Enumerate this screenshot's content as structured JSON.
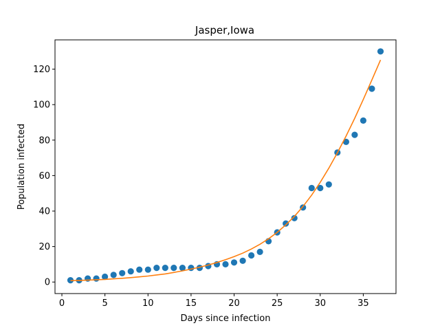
{
  "chart_data": {
    "type": "scatter",
    "title": "Jasper,Iowa",
    "xlabel": "Days since infection",
    "ylabel": "Population infected",
    "xlim": [
      -0.8,
      38.8
    ],
    "ylim": [
      -6.5,
      136.5
    ],
    "xticks": [
      0,
      5,
      10,
      15,
      20,
      25,
      30,
      35
    ],
    "yticks": [
      0,
      20,
      40,
      60,
      80,
      100,
      120
    ],
    "grid": false,
    "series": [
      {
        "kind": "scatter",
        "color": "#1f77b4",
        "x": [
          1,
          2,
          3,
          4,
          5,
          6,
          7,
          8,
          9,
          10,
          11,
          12,
          13,
          14,
          15,
          16,
          17,
          18,
          19,
          20,
          21,
          22,
          23,
          24,
          25,
          26,
          27,
          28,
          29,
          30,
          31,
          32,
          33,
          34,
          35,
          36,
          37
        ],
        "y": [
          1,
          1,
          2,
          2,
          3,
          4,
          5,
          6,
          7,
          7,
          8,
          8,
          8,
          8,
          8,
          8,
          9,
          10,
          10,
          11,
          12,
          15,
          17,
          23,
          28,
          33,
          36,
          42,
          53,
          53,
          55,
          73,
          79,
          83,
          91,
          109,
          130
        ]
      },
      {
        "kind": "line",
        "color": "#ff7f0e",
        "x": [
          1,
          2,
          3,
          4,
          5,
          6,
          7,
          8,
          9,
          10,
          11,
          12,
          13,
          14,
          15,
          16,
          17,
          18,
          19,
          20,
          21,
          22,
          23,
          24,
          25,
          26,
          27,
          28,
          29,
          30,
          31,
          32,
          33,
          34,
          35,
          36,
          37
        ],
        "y": [
          0.8,
          0.9,
          1.1,
          1.3,
          1.5,
          1.8,
          2.1,
          2.5,
          2.9,
          3.4,
          4.0,
          4.6,
          5.4,
          6.3,
          7.3,
          8.4,
          9.6,
          11.0,
          12.6,
          14.3,
          16.3,
          18.6,
          21.3,
          24.4,
          28.0,
          32.2,
          37.0,
          42.6,
          49.0,
          56.2,
          64.2,
          72.9,
          82.3,
          92.3,
          102.9,
          113.9,
          125.2
        ]
      }
    ]
  }
}
